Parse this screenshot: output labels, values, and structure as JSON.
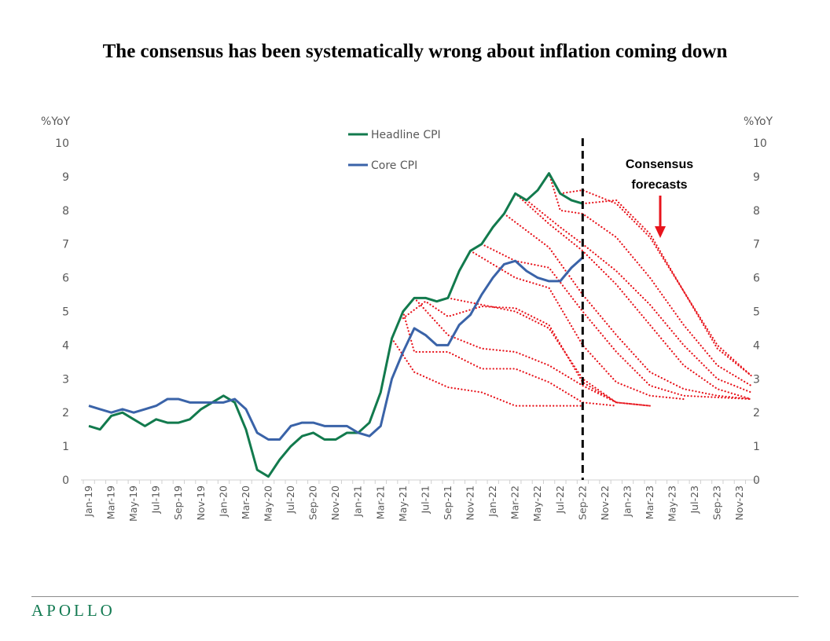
{
  "title": "The consensus has been systematically wrong about inflation coming down",
  "logo": "APOLLO",
  "chart_data": {
    "type": "line",
    "title": "The consensus has been systematically wrong about inflation coming down",
    "ylabel_left": "%YoY",
    "ylabel_right": "%YoY",
    "ylim": [
      0,
      10
    ],
    "yticks": [
      0,
      1,
      2,
      3,
      4,
      5,
      6,
      7,
      8,
      9,
      10
    ],
    "x_months": [
      "Jan-19",
      "Feb-19",
      "Mar-19",
      "Apr-19",
      "May-19",
      "Jun-19",
      "Jul-19",
      "Aug-19",
      "Sep-19",
      "Oct-19",
      "Nov-19",
      "Dec-19",
      "Jan-20",
      "Feb-20",
      "Mar-20",
      "Apr-20",
      "May-20",
      "Jun-20",
      "Jul-20",
      "Aug-20",
      "Sep-20",
      "Oct-20",
      "Nov-20",
      "Dec-20",
      "Jan-21",
      "Feb-21",
      "Mar-21",
      "Apr-21",
      "May-21",
      "Jun-21",
      "Jul-21",
      "Aug-21",
      "Sep-21",
      "Oct-21",
      "Nov-21",
      "Dec-21",
      "Jan-22",
      "Feb-22",
      "Mar-22",
      "Apr-22",
      "May-22",
      "Jun-22",
      "Jul-22",
      "Aug-22",
      "Sep-22",
      "Oct-22",
      "Nov-22",
      "Dec-22",
      "Jan-23",
      "Feb-23",
      "Mar-23",
      "Apr-23",
      "May-23",
      "Jun-23",
      "Jul-23",
      "Aug-23",
      "Sep-23",
      "Oct-23",
      "Nov-23",
      "Dec-23"
    ],
    "x_tick_labels": [
      "Jan-19",
      "Mar-19",
      "May-19",
      "Jul-19",
      "Sep-19",
      "Nov-19",
      "Jan-20",
      "Mar-20",
      "May-20",
      "Jul-20",
      "Sep-20",
      "Nov-20",
      "Jan-21",
      "Mar-21",
      "May-21",
      "Jul-21",
      "Sep-21",
      "Nov-21",
      "Jan-22",
      "Mar-22",
      "May-22",
      "Jul-22",
      "Sep-22",
      "Nov-22",
      "Jan-23",
      "Mar-23",
      "May-23",
      "Jul-23",
      "Sep-23",
      "Nov-23"
    ],
    "series": [
      {
        "name": "Headline CPI",
        "color": "#127a4d",
        "values": [
          1.6,
          1.5,
          1.9,
          2.0,
          1.8,
          1.6,
          1.8,
          1.7,
          1.7,
          1.8,
          2.1,
          2.3,
          2.5,
          2.3,
          1.5,
          0.3,
          0.1,
          0.6,
          1.0,
          1.3,
          1.4,
          1.2,
          1.2,
          1.4,
          1.4,
          1.7,
          2.6,
          4.2,
          5.0,
          5.4,
          5.4,
          5.3,
          5.4,
          6.2,
          6.8,
          7.0,
          7.5,
          7.9,
          8.5,
          8.3,
          8.6,
          9.1,
          8.5,
          8.3,
          8.2
        ]
      },
      {
        "name": "Core CPI",
        "color": "#3a63a8",
        "values": [
          2.2,
          2.1,
          2.0,
          2.1,
          2.0,
          2.1,
          2.2,
          2.4,
          2.4,
          2.3,
          2.3,
          2.3,
          2.3,
          2.4,
          2.1,
          1.4,
          1.2,
          1.2,
          1.6,
          1.7,
          1.7,
          1.6,
          1.6,
          1.6,
          1.4,
          1.3,
          1.6,
          3.0,
          3.8,
          4.5,
          4.3,
          4.0,
          4.0,
          4.6,
          4.9,
          5.5,
          6.0,
          6.4,
          6.5,
          6.2,
          6.0,
          5.9,
          5.9,
          6.3,
          6.6
        ]
      }
    ],
    "forecasts_color": "#e8141c",
    "forecasts": [
      [
        [
          "Apr-21",
          4.2
        ],
        [
          "Jun-21",
          3.2
        ],
        [
          "Sep-21",
          2.75
        ],
        [
          "Dec-21",
          2.6
        ],
        [
          "Mar-22",
          2.2
        ],
        [
          "Sep-22",
          2.2
        ]
      ],
      [
        [
          "May-21",
          5.0
        ],
        [
          "Jun-21",
          3.8
        ],
        [
          "Sep-21",
          3.8
        ],
        [
          "Dec-21",
          3.3
        ],
        [
          "Mar-22",
          3.3
        ],
        [
          "Jun-22",
          2.9
        ],
        [
          "Sep-22",
          2.3
        ],
        [
          "Dec-22",
          2.2
        ]
      ],
      [
        [
          "Jun-21",
          5.4
        ],
        [
          "Sep-21",
          4.3
        ],
        [
          "Dec-21",
          3.9
        ],
        [
          "Mar-22",
          3.8
        ],
        [
          "Jun-22",
          3.4
        ],
        [
          "Sep-22",
          2.8
        ],
        [
          "Dec-22",
          2.3
        ],
        [
          "Mar-23",
          2.2
        ]
      ],
      [
        [
          "May-21",
          4.8
        ],
        [
          "Jul-21",
          5.3
        ],
        [
          "Sep-21",
          4.85
        ],
        [
          "Dec-21",
          5.15
        ],
        [
          "Mar-22",
          5.1
        ],
        [
          "Jun-22",
          4.6
        ],
        [
          "Sep-22",
          2.9
        ],
        [
          "Dec-22",
          2.3
        ]
      ],
      [
        [
          "Sep-21",
          5.4
        ],
        [
          "Dec-21",
          5.2
        ],
        [
          "Mar-22",
          5.0
        ],
        [
          "Jun-22",
          4.5
        ],
        [
          "Sep-22",
          3.0
        ],
        [
          "Dec-22",
          2.3
        ],
        [
          "Mar-23",
          2.2
        ]
      ],
      [
        [
          "Nov-21",
          6.8
        ],
        [
          "Mar-22",
          6.0
        ],
        [
          "Jun-22",
          5.7
        ],
        [
          "Sep-22",
          4.0
        ],
        [
          "Dec-22",
          2.9
        ],
        [
          "Mar-23",
          2.5
        ],
        [
          "Jun-23",
          2.4
        ]
      ],
      [
        [
          "Dec-21",
          7.0
        ],
        [
          "Mar-22",
          6.5
        ],
        [
          "Jun-22",
          6.3
        ],
        [
          "Sep-22",
          5.0
        ],
        [
          "Dec-22",
          3.8
        ],
        [
          "Mar-23",
          2.8
        ],
        [
          "Jun-23",
          2.5
        ],
        [
          "Sep-23",
          2.45
        ],
        [
          "Dec-23",
          2.4
        ]
      ],
      [
        [
          "Feb-22",
          7.9
        ],
        [
          "Jun-22",
          6.9
        ],
        [
          "Sep-22",
          5.5
        ],
        [
          "Dec-22",
          4.3
        ],
        [
          "Mar-23",
          3.2
        ],
        [
          "Jun-23",
          2.7
        ],
        [
          "Sep-23",
          2.5
        ],
        [
          "Dec-23",
          2.4
        ]
      ],
      [
        [
          "Mar-22",
          8.5
        ],
        [
          "Jun-22",
          7.6
        ],
        [
          "Sep-22",
          6.8
        ],
        [
          "Dec-22",
          5.8
        ],
        [
          "Mar-23",
          4.6
        ],
        [
          "Jun-23",
          3.4
        ],
        [
          "Sep-23",
          2.7
        ],
        [
          "Dec-23",
          2.4
        ]
      ],
      [
        [
          "Apr-22",
          8.3
        ],
        [
          "Jul-22",
          7.5
        ],
        [
          "Sep-22",
          7.0
        ],
        [
          "Dec-22",
          6.2
        ],
        [
          "Mar-23",
          5.2
        ],
        [
          "Jun-23",
          4.0
        ],
        [
          "Sep-23",
          3.0
        ],
        [
          "Dec-23",
          2.6
        ]
      ],
      [
        [
          "Jun-22",
          9.1
        ],
        [
          "Jul-22",
          8.0
        ],
        [
          "Sep-22",
          7.9
        ],
        [
          "Dec-22",
          7.2
        ],
        [
          "Mar-23",
          6.0
        ],
        [
          "Jun-23",
          4.6
        ],
        [
          "Sep-23",
          3.4
        ],
        [
          "Dec-23",
          2.8
        ]
      ],
      [
        [
          "Jul-22",
          8.5
        ],
        [
          "Sep-22",
          8.6
        ],
        [
          "Dec-22",
          8.2
        ],
        [
          "Mar-23",
          7.2
        ],
        [
          "Jun-23",
          5.6
        ],
        [
          "Sep-23",
          3.9
        ],
        [
          "Dec-23",
          3.1
        ]
      ],
      [
        [
          "Sep-22",
          8.2
        ],
        [
          "Dec-22",
          8.3
        ],
        [
          "Mar-23",
          7.3
        ],
        [
          "Jun-23",
          5.6
        ],
        [
          "Sep-23",
          4.0
        ],
        [
          "Dec-23",
          3.1
        ]
      ]
    ],
    "vertical_marker": "Sep-22",
    "annotation": {
      "text_line1": "Consensus",
      "text_line2": "forecasts",
      "arrow_color": "#e8141c"
    },
    "legend": "top-center",
    "grid": false
  }
}
